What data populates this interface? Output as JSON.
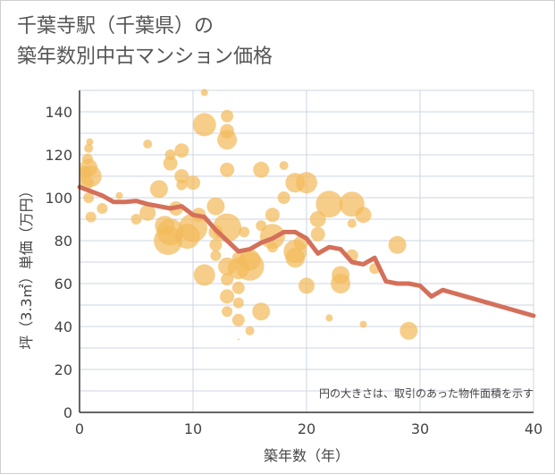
{
  "title": "千葉寺駅（千葉県）の\n築年数別中古マンション価格",
  "chart_data": {
    "type": "scatter",
    "xlabel": "築年数（年）",
    "ylabel": "坪（3.3㎡）単価（万円）",
    "xlim": [
      0,
      40
    ],
    "ylim": [
      0,
      150
    ],
    "x_ticks": [
      0,
      10,
      20,
      30,
      40
    ],
    "y_ticks": [
      0,
      20,
      40,
      60,
      80,
      100,
      120,
      140
    ],
    "grid": true,
    "note": "円の大きさは、取引のあった物件面積を示す",
    "colors": {
      "bubble": "#f3bb5c",
      "trend": "#d4705a",
      "grid": "#cdd6e0"
    },
    "bubbles": [
      {
        "x": 0.5,
        "y": 112,
        "r": 7
      },
      {
        "x": 0.7,
        "y": 118,
        "r": 6
      },
      {
        "x": 0.8,
        "y": 123,
        "r": 5
      },
      {
        "x": 0.9,
        "y": 126,
        "r": 4
      },
      {
        "x": 0.8,
        "y": 114,
        "r": 10
      },
      {
        "x": 0.6,
        "y": 107,
        "r": 8
      },
      {
        "x": 0.8,
        "y": 100,
        "r": 6
      },
      {
        "x": 1.0,
        "y": 91,
        "r": 6
      },
      {
        "x": 1.0,
        "y": 110,
        "r": 12
      },
      {
        "x": 2.0,
        "y": 95,
        "r": 6
      },
      {
        "x": 3.5,
        "y": 101,
        "r": 4
      },
      {
        "x": 6.0,
        "y": 125,
        "r": 5
      },
      {
        "x": 5.0,
        "y": 90,
        "r": 6
      },
      {
        "x": 6.0,
        "y": 93,
        "r": 9
      },
      {
        "x": 7.0,
        "y": 104,
        "r": 10
      },
      {
        "x": 7.5,
        "y": 87,
        "r": 11
      },
      {
        "x": 8.0,
        "y": 84,
        "r": 15
      },
      {
        "x": 7.8,
        "y": 80,
        "r": 16
      },
      {
        "x": 8.0,
        "y": 116,
        "r": 8
      },
      {
        "x": 8.0,
        "y": 120,
        "r": 6
      },
      {
        "x": 8.5,
        "y": 95,
        "r": 8
      },
      {
        "x": 9.0,
        "y": 110,
        "r": 8
      },
      {
        "x": 9.0,
        "y": 122,
        "r": 8
      },
      {
        "x": 9.0,
        "y": 106,
        "r": 6
      },
      {
        "x": 9.5,
        "y": 82,
        "r": 14
      },
      {
        "x": 10.0,
        "y": 86,
        "r": 16
      },
      {
        "x": 10.0,
        "y": 107,
        "r": 8
      },
      {
        "x": 10.5,
        "y": 92,
        "r": 8
      },
      {
        "x": 11.0,
        "y": 134,
        "r": 13
      },
      {
        "x": 11.0,
        "y": 149,
        "r": 4
      },
      {
        "x": 11.0,
        "y": 64,
        "r": 12
      },
      {
        "x": 12.0,
        "y": 96,
        "r": 10
      },
      {
        "x": 12.0,
        "y": 84,
        "r": 8
      },
      {
        "x": 12.0,
        "y": 78,
        "r": 7
      },
      {
        "x": 12.0,
        "y": 73,
        "r": 6
      },
      {
        "x": 13.0,
        "y": 86,
        "r": 16
      },
      {
        "x": 13.0,
        "y": 127,
        "r": 11
      },
      {
        "x": 13.0,
        "y": 131,
        "r": 8
      },
      {
        "x": 13.0,
        "y": 113,
        "r": 8
      },
      {
        "x": 13.0,
        "y": 138,
        "r": 7
      },
      {
        "x": 13.0,
        "y": 68,
        "r": 10
      },
      {
        "x": 13.0,
        "y": 62,
        "r": 7
      },
      {
        "x": 13.0,
        "y": 54,
        "r": 8
      },
      {
        "x": 13.0,
        "y": 47,
        "r": 6
      },
      {
        "x": 14.0,
        "y": 72,
        "r": 7
      },
      {
        "x": 14.0,
        "y": 67,
        "r": 12
      },
      {
        "x": 14.0,
        "y": 58,
        "r": 7
      },
      {
        "x": 14.0,
        "y": 51,
        "r": 6
      },
      {
        "x": 14.0,
        "y": 43,
        "r": 7
      },
      {
        "x": 14.0,
        "y": 34,
        "r": 1
      },
      {
        "x": 14.5,
        "y": 84,
        "r": 6
      },
      {
        "x": 15.0,
        "y": 71,
        "r": 12
      },
      {
        "x": 15.0,
        "y": 68,
        "r": 16
      },
      {
        "x": 15.0,
        "y": 38,
        "r": 5
      },
      {
        "x": 16.0,
        "y": 113,
        "r": 9
      },
      {
        "x": 16.0,
        "y": 87,
        "r": 6
      },
      {
        "x": 16.0,
        "y": 47,
        "r": 10
      },
      {
        "x": 17.0,
        "y": 82,
        "r": 14
      },
      {
        "x": 17.0,
        "y": 92,
        "r": 8
      },
      {
        "x": 17.0,
        "y": 77,
        "r": 6
      },
      {
        "x": 18.0,
        "y": 100,
        "r": 7
      },
      {
        "x": 18.0,
        "y": 115,
        "r": 5
      },
      {
        "x": 19.0,
        "y": 107,
        "r": 11
      },
      {
        "x": 19.0,
        "y": 75,
        "r": 13
      },
      {
        "x": 19.0,
        "y": 72,
        "r": 11
      },
      {
        "x": 19.5,
        "y": 79,
        "r": 8
      },
      {
        "x": 20.0,
        "y": 107,
        "r": 12
      },
      {
        "x": 20.0,
        "y": 59,
        "r": 9
      },
      {
        "x": 21.0,
        "y": 90,
        "r": 9
      },
      {
        "x": 21.0,
        "y": 83,
        "r": 8
      },
      {
        "x": 22.0,
        "y": 97,
        "r": 15
      },
      {
        "x": 22.0,
        "y": 44,
        "r": 4
      },
      {
        "x": 23.0,
        "y": 64,
        "r": 10
      },
      {
        "x": 23.0,
        "y": 60,
        "r": 11
      },
      {
        "x": 24.0,
        "y": 97,
        "r": 14
      },
      {
        "x": 24.0,
        "y": 88,
        "r": 5
      },
      {
        "x": 24.0,
        "y": 73,
        "r": 7
      },
      {
        "x": 25.0,
        "y": 92,
        "r": 9
      },
      {
        "x": 25.0,
        "y": 41,
        "r": 4
      },
      {
        "x": 26.0,
        "y": 67,
        "r": 6
      },
      {
        "x": 28.0,
        "y": 78,
        "r": 10
      },
      {
        "x": 29.0,
        "y": 38,
        "r": 10
      }
    ],
    "trend": {
      "x": [
        0,
        1,
        2,
        3,
        4,
        5,
        6,
        7,
        8,
        9,
        10,
        11,
        12,
        13,
        14,
        15,
        16,
        17,
        18,
        19,
        20,
        21,
        22,
        23,
        24,
        25,
        26,
        27,
        28,
        29,
        30,
        31,
        32,
        40
      ],
      "y": [
        105,
        103,
        101,
        98,
        98,
        98.5,
        97,
        96,
        95,
        96,
        92,
        91,
        85,
        80,
        75,
        76,
        79,
        81,
        84,
        84,
        81,
        74,
        77,
        76,
        70,
        69,
        72,
        61,
        60,
        60,
        59,
        54,
        57,
        45
      ]
    }
  }
}
